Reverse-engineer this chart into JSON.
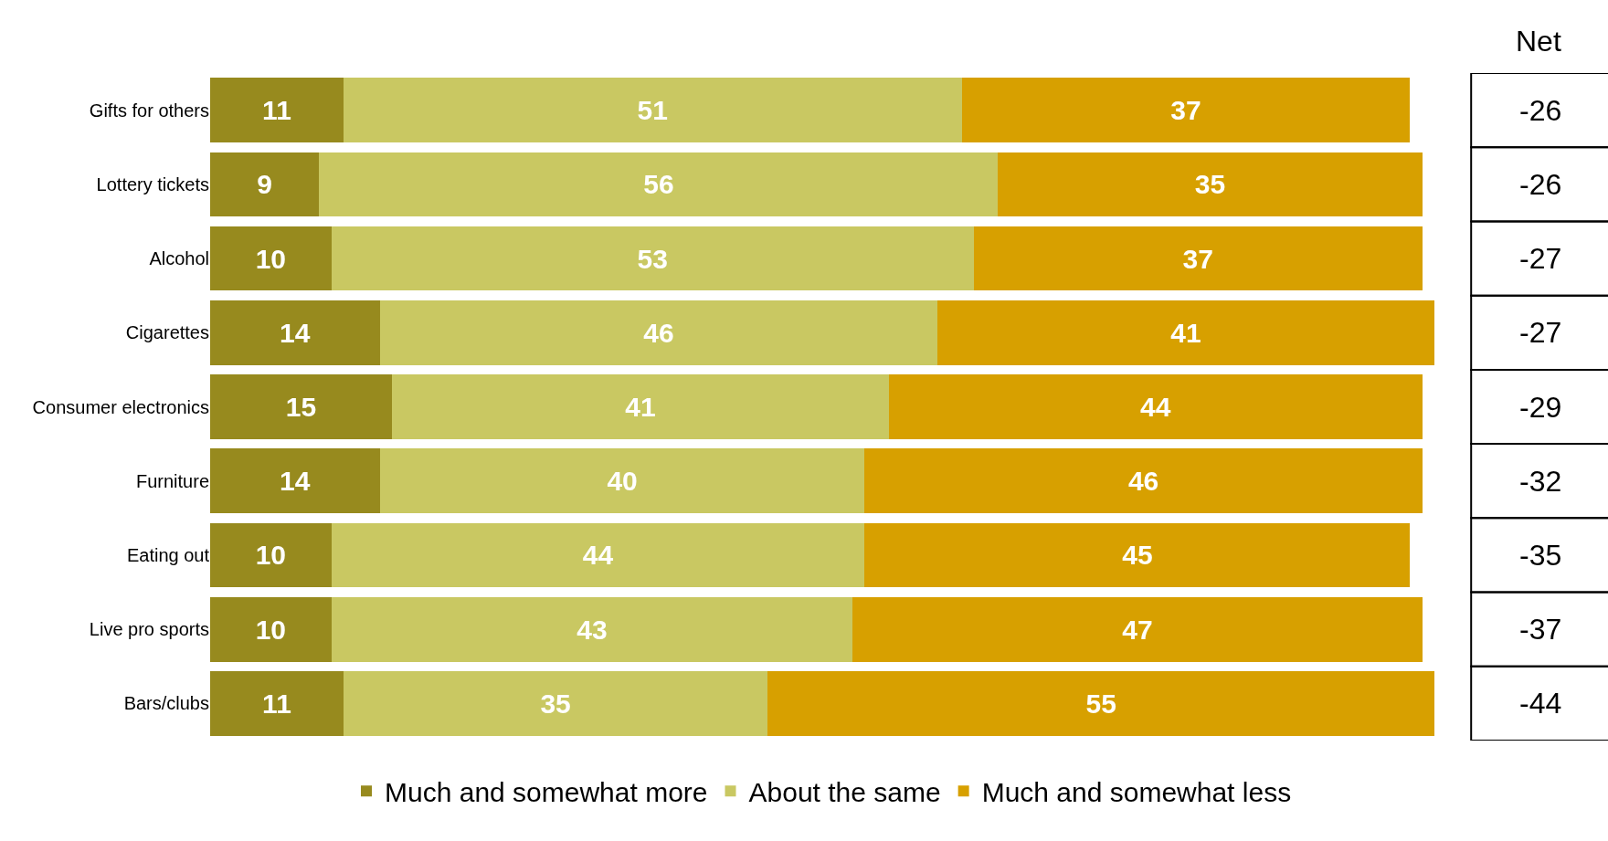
{
  "chart_data": {
    "type": "bar",
    "orientation": "horizontal",
    "stacked": true,
    "data_labels": true,
    "legend": "bottom",
    "categories": [
      "Gifts for others",
      "Lottery tickets",
      "Alcohol",
      "Cigarettes",
      "Consumer electronics",
      "Furniture",
      "Eating out",
      "Live pro sports",
      "Bars/clubs"
    ],
    "series": [
      {
        "name": "Much and somewhat more",
        "color": "#978a1e",
        "values": [
          11,
          9,
          10,
          14,
          15,
          14,
          10,
          10,
          11
        ]
      },
      {
        "name": "About the same",
        "color": "#c9c862",
        "values": [
          51,
          56,
          53,
          46,
          41,
          40,
          44,
          43,
          35
        ]
      },
      {
        "name": "Much and somewhat less",
        "color": "#d7a000",
        "values": [
          37,
          35,
          37,
          41,
          44,
          46,
          45,
          47,
          55
        ]
      }
    ],
    "annotations": [
      "Net",
      "-26",
      "-26",
      "-27",
      "-27",
      "-29",
      "-32",
      "-35",
      "-37",
      "-44"
    ]
  }
}
